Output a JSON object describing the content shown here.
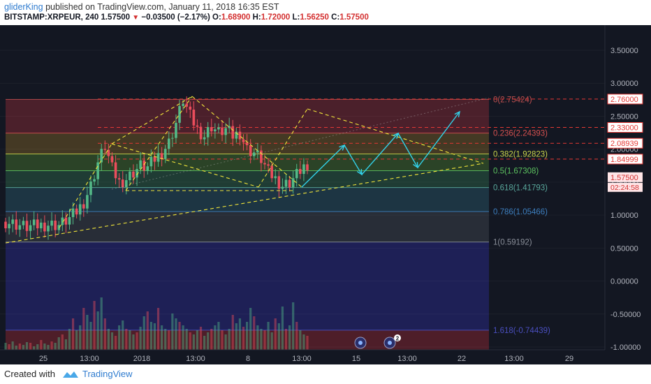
{
  "header": {
    "username": "gliderKing",
    "published_text": "published on TradingView.com, January 11, 2018 16:35 EST",
    "symbol": "BITSTAMP:XRPEUR, 240",
    "last": "1.57500",
    "change": "−0.03500 (−2.17%)",
    "o_label": "O:",
    "o": "1.68900",
    "h_label": "H:",
    "h": "1.72000",
    "l_label": "L:",
    "l": "1.56250",
    "c_label": "C:",
    "c": "1.57500"
  },
  "footer": {
    "created_with": "Created with",
    "brand": "TradingView"
  },
  "colors": {
    "background": "#131722",
    "up": "#53b987",
    "down": "#eb4d5c",
    "trend_dashed": "#f2e63a",
    "projection": "#33d1e8",
    "resistance": "#e53935"
  },
  "chart_data": {
    "type": "candlestick",
    "title": "",
    "y_range": [
      -1.08,
      3.75
    ],
    "y_ticks": [
      "3.50000",
      "3.00000",
      "2.50000",
      "2.00000",
      "1.50000",
      "1.00000",
      "0.50000",
      "0.00000",
      "-0.50000",
      "-1.00000"
    ],
    "x_ticks": [
      "25",
      "13:00",
      "2018",
      "13:00",
      "8",
      "13:00",
      "15",
      "13:00",
      "22",
      "13:00",
      "29"
    ],
    "fib_levels": [
      {
        "label": "0(2.75424)",
        "ratio": 0,
        "value": 2.75424,
        "color": "#c05050"
      },
      {
        "label": "0.236(2.24393)",
        "ratio": 0.236,
        "value": 2.24393,
        "color": "#d4504f"
      },
      {
        "label": "0.382(1.92823)",
        "ratio": 0.382,
        "value": 1.92823,
        "color": "#c8d44a"
      },
      {
        "label": "0.5(1.67308)",
        "ratio": 0.5,
        "value": 1.67308,
        "color": "#5cc25f"
      },
      {
        "label": "0.618(1.41793)",
        "ratio": 0.618,
        "value": 1.41793,
        "color": "#5aa89c"
      },
      {
        "label": "0.786(1.05466)",
        "ratio": 0.786,
        "value": 1.05466,
        "color": "#3d7fbf"
      },
      {
        "label": "1(0.59192)",
        "ratio": 1,
        "value": 0.59192,
        "color": "#8a8f99"
      },
      {
        "label": "1.618(-0.74439)",
        "ratio": 1.618,
        "value": -0.74439,
        "color": "#4a4fbf"
      }
    ],
    "resistance_labels": [
      "2.76000",
      "2.33000",
      "2.08939",
      "1.84999"
    ],
    "resistance_values": [
      2.76,
      2.33,
      2.08939,
      1.84999
    ],
    "price_label": "1.57500",
    "countdown_label": "02:24:58",
    "price_path": [
      [
        0,
        0.9
      ],
      [
        3,
        0.86
      ],
      [
        6,
        0.82
      ],
      [
        9,
        0.84
      ],
      [
        12,
        0.86
      ],
      [
        15,
        0.85
      ],
      [
        18,
        0.95
      ],
      [
        20,
        1.05
      ],
      [
        22,
        1.2
      ],
      [
        24,
        1.45
      ],
      [
        26,
        1.8
      ],
      [
        28,
        2.05
      ],
      [
        30,
        1.7
      ],
      [
        32,
        1.5
      ],
      [
        34,
        1.55
      ],
      [
        36,
        1.65
      ],
      [
        38,
        1.75
      ],
      [
        40,
        1.72
      ],
      [
        42,
        1.85
      ],
      [
        44,
        1.95
      ],
      [
        46,
        2.1
      ],
      [
        48,
        2.4
      ],
      [
        50,
        2.75
      ],
      [
        52,
        2.5
      ],
      [
        54,
        2.3
      ],
      [
        56,
        2.2
      ],
      [
        58,
        2.35
      ],
      [
        60,
        2.25
      ],
      [
        62,
        2.3
      ],
      [
        64,
        2.2
      ],
      [
        66,
        2.25
      ],
      [
        68,
        2.0
      ],
      [
        70,
        1.95
      ],
      [
        72,
        1.85
      ],
      [
        74,
        1.65
      ],
      [
        76,
        1.55
      ],
      [
        78,
        1.45
      ],
      [
        80,
        1.5
      ],
      [
        82,
        1.62
      ],
      [
        84,
        1.75
      ],
      [
        85,
        1.58
      ]
    ],
    "volume_bars": [
      0.1,
      0.08,
      0.12,
      0.06,
      0.09,
      0.07,
      0.11,
      0.1,
      0.05,
      0.08,
      0.14,
      0.09,
      0.07,
      0.12,
      0.1,
      0.18,
      0.22,
      0.15,
      0.3,
      0.45,
      0.28,
      0.35,
      0.6,
      0.5,
      0.4,
      0.7,
      0.55,
      0.75,
      0.45,
      0.3,
      0.25,
      0.2,
      0.35,
      0.42,
      0.3,
      0.28,
      0.22,
      0.25,
      0.33,
      0.48,
      0.55,
      0.4,
      0.38,
      0.6,
      0.35,
      0.3,
      0.28,
      0.52,
      0.45,
      0.4,
      0.35,
      0.3,
      0.25,
      0.22,
      0.28,
      0.33,
      0.2,
      0.25,
      0.3,
      0.35,
      0.4,
      0.28,
      0.22,
      0.3,
      0.5,
      0.38,
      0.45,
      0.33,
      0.4,
      0.6,
      0.48,
      0.35,
      0.3,
      0.28,
      0.4,
      0.25,
      0.45,
      0.38,
      0.62,
      0.3,
      0.35,
      0.68,
      0.4,
      0.28,
      0.22,
      0.2
    ],
    "volume_up_pattern": "mixed"
  }
}
